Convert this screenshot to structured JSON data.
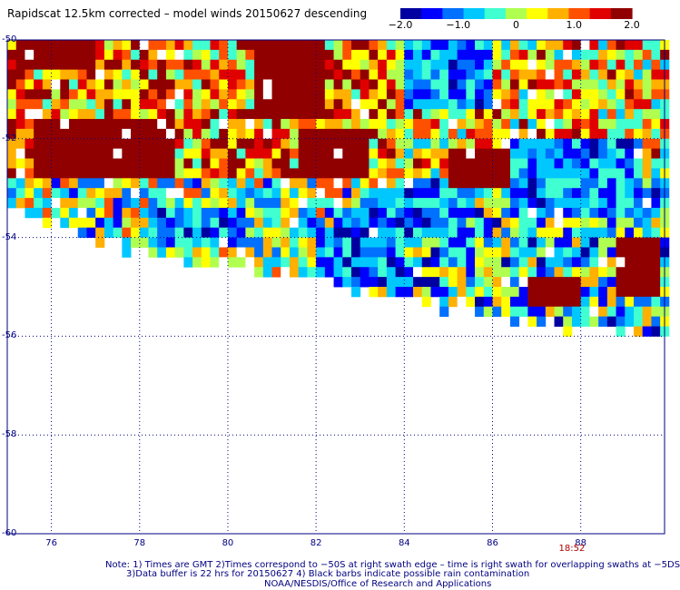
{
  "title": "Rapidscat 12.5km corrected – model winds 20150627 descending",
  "colorbar": {
    "ticks": [
      "−2.0",
      "−1.0",
      "0",
      "1.0",
      "2.0"
    ],
    "tick_values": [
      -2.0,
      -1.0,
      0,
      1.0,
      2.0
    ],
    "colors": [
      "#0000a0",
      "#0000ff",
      "#0070ff",
      "#00c8ff",
      "#40ffd0",
      "#b0ff50",
      "#ffff00",
      "#ffb000",
      "#ff5000",
      "#e00000",
      "#900000"
    ]
  },
  "chart_data": {
    "type": "heatmap",
    "title": "Rapidscat 12.5km corrected – model winds 20150627 descending",
    "x_ticks": [
      "76",
      "78",
      "80",
      "82",
      "84",
      "86",
      "88"
    ],
    "x_values": [
      76,
      78,
      80,
      82,
      84,
      86,
      88
    ],
    "y_ticks": [
      "-50",
      "-52",
      "-54",
      "-56",
      "-58",
      "-60"
    ],
    "y_values": [
      -50,
      -52,
      -54,
      -56,
      -58,
      -60
    ],
    "xlim": [
      75.0,
      89.9
    ],
    "ylim": [
      -60,
      -50
    ],
    "value_range": [
      -2.0,
      2.0
    ],
    "grid": true,
    "time_label": "18:52",
    "time_label_lon": 87.8,
    "swath_lower_edge": [
      [
        75.0,
        -53.25
      ],
      [
        76.0,
        -53.6
      ],
      [
        78.0,
        -54.2
      ],
      [
        80.0,
        -54.55
      ],
      [
        82.0,
        -54.75
      ],
      [
        83.0,
        -55.0
      ],
      [
        84.0,
        -55.2
      ],
      [
        86.0,
        -55.5
      ],
      [
        88.0,
        -55.75
      ],
      [
        89.9,
        -55.95
      ]
    ],
    "high_regions": [
      {
        "lon_range": [
          75.6,
          78.8
        ],
        "lat_range": [
          -52.9,
          -51.6
        ]
      },
      {
        "lon_range": [
          75.3,
          77.0
        ],
        "lat_range": [
          -50.6,
          -50.0
        ]
      },
      {
        "lon_range": [
          80.6,
          82.2
        ],
        "lat_range": [
          -51.6,
          -50.0
        ]
      },
      {
        "lon_range": [
          81.6,
          83.2
        ],
        "lat_range": [
          -52.8,
          -51.8
        ]
      },
      {
        "lon_range": [
          86.8,
          88.0
        ],
        "lat_range": [
          -55.5,
          -54.9
        ]
      },
      {
        "lon_range": [
          88.9,
          89.9
        ],
        "lat_range": [
          -55.2,
          -54.0
        ]
      },
      {
        "lon_range": [
          85.0,
          86.5
        ],
        "lat_range": [
          -53.0,
          -52.2
        ]
      }
    ],
    "low_regions": [
      {
        "lon_range": [
          82.0,
          84.0
        ],
        "lat_range": [
          -55.0,
          -53.8
        ]
      },
      {
        "lon_range": [
          83.0,
          85.5
        ],
        "lat_range": [
          -54.0,
          -53.0
        ]
      },
      {
        "lon_range": [
          86.5,
          89.5
        ],
        "lat_range": [
          -53.6,
          -52.0
        ]
      },
      {
        "lon_range": [
          84.0,
          86.0
        ],
        "lat_range": [
          -51.5,
          -50.0
        ]
      },
      {
        "lon_range": [
          78.5,
          80.5
        ],
        "lat_range": [
          -54.3,
          -53.5
        ]
      }
    ]
  },
  "notes": {
    "line1": "Note: 1) Times are GMT 2)Times correspond to −50S at right swath edge – time is right swath for overlapping swaths at −5DS",
    "line2": "3)Data buffer is 22 hrs for 20150627 4) Black barbs indicate possible rain contamination",
    "line3": "NOAA/NESDIS/Office of Research and Applications"
  }
}
